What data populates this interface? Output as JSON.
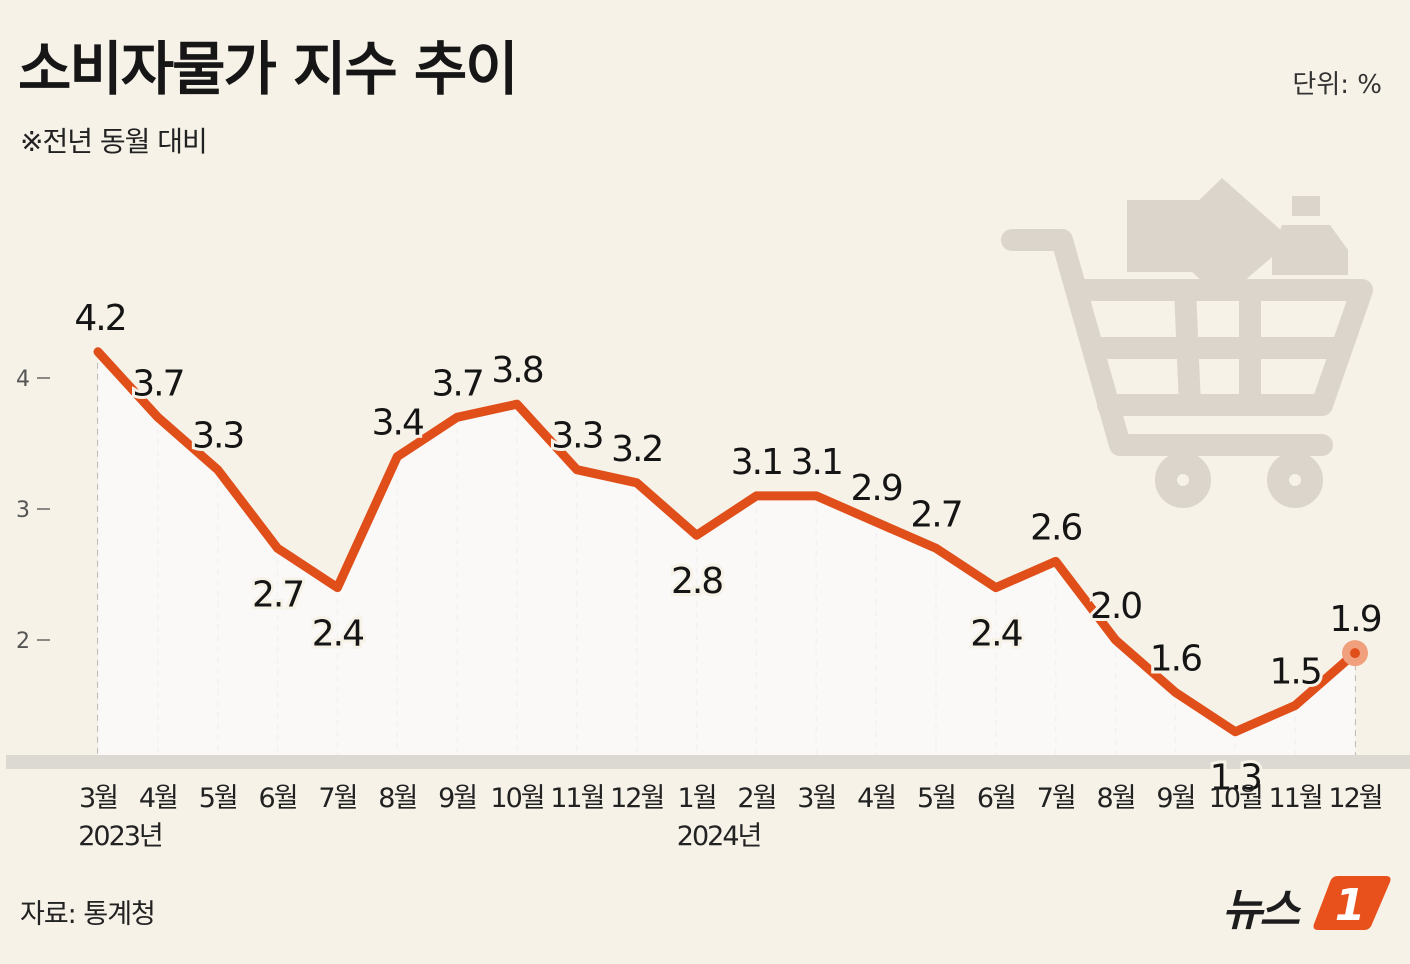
{
  "title": "소비자물가 지수 추이",
  "subtitle": "※전년 동월 대비",
  "unit": "단위: %",
  "source": "자료: 통계청",
  "logo": {
    "text": "뉴스",
    "mark": "1",
    "icon": "news1-logo-icon"
  },
  "decoration": {
    "icon": "shopping-cart-icon"
  },
  "colors": {
    "line": "#e04f1a",
    "last_point": "#f0a07c",
    "background": "#f6f2e8",
    "logo_accent": "#e8501c"
  },
  "chart_data": {
    "type": "line",
    "categories": [
      "3월",
      "4월",
      "5월",
      "6월",
      "7월",
      "8월",
      "9월",
      "10월",
      "11월",
      "12월",
      "1월",
      "2월",
      "3월",
      "4월",
      "5월",
      "6월",
      "7월",
      "8월",
      "9월",
      "10월",
      "11월",
      "12월"
    ],
    "year_labels": [
      {
        "label": "2023년",
        "at_index": 0
      },
      {
        "label": "2024년",
        "at_index": 10
      }
    ],
    "series": [
      {
        "values": [
          4.2,
          3.7,
          3.3,
          2.7,
          2.4,
          3.4,
          3.7,
          3.8,
          3.3,
          3.2,
          2.8,
          3.1,
          3.1,
          2.9,
          2.7,
          2.4,
          2.6,
          2.0,
          1.6,
          1.3,
          1.5,
          1.9
        ],
        "labels": [
          "4.2",
          "3.7",
          "3.3",
          "2.7",
          "2.4",
          "3.4",
          "3.7",
          "3.8",
          "3.3",
          "3.2",
          "2.8",
          "3.1",
          "3.1",
          "2.9",
          "2.7",
          "2.4",
          "2.6",
          "2.0",
          "1.6",
          "1.3",
          "1.5",
          "1.9"
        ]
      }
    ],
    "yticks": [
      "4",
      "3",
      "2"
    ],
    "ylim": [
      1.2,
      4.6
    ],
    "grid": false,
    "legend": "none"
  }
}
